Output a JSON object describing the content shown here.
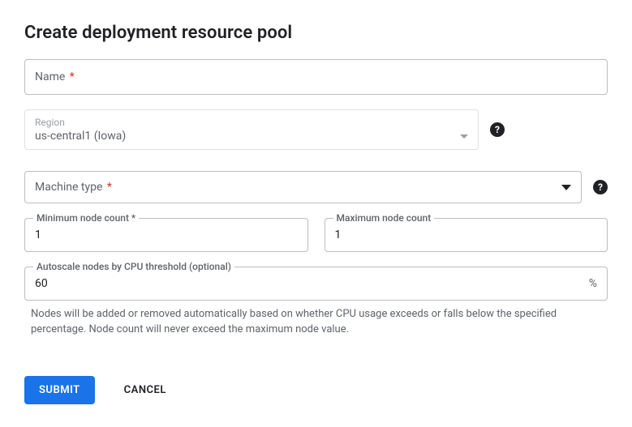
{
  "title": "Create deployment resource pool",
  "name_field": {
    "label": "Name",
    "required_mark": "*"
  },
  "region": {
    "label": "Region",
    "value": "us-central1 (Iowa)"
  },
  "machine_type": {
    "label": "Machine type",
    "required_mark": "*"
  },
  "min_nodes": {
    "label": "Minimum node count",
    "required_mark": "*",
    "value": "1"
  },
  "max_nodes": {
    "label": "Maximum node count",
    "value": "1"
  },
  "autoscale": {
    "label": "Autoscale nodes by CPU threshold (optional)",
    "value": "60",
    "suffix": "%",
    "helper": "Nodes will be added or removed automatically based on whether CPU usage exceeds or falls below the specified percentage. Node count will never exceed the maximum node value."
  },
  "actions": {
    "submit": "SUBMIT",
    "cancel": "CANCEL"
  },
  "icons": {
    "help": "?"
  },
  "colors": {
    "primary": "#1a73e8",
    "required": "#d93025",
    "border": "#bdbdbd",
    "border_light": "#e0e0e0",
    "text": "#202124",
    "muted": "#5f6368",
    "placeholder": "#9aa0a6"
  }
}
